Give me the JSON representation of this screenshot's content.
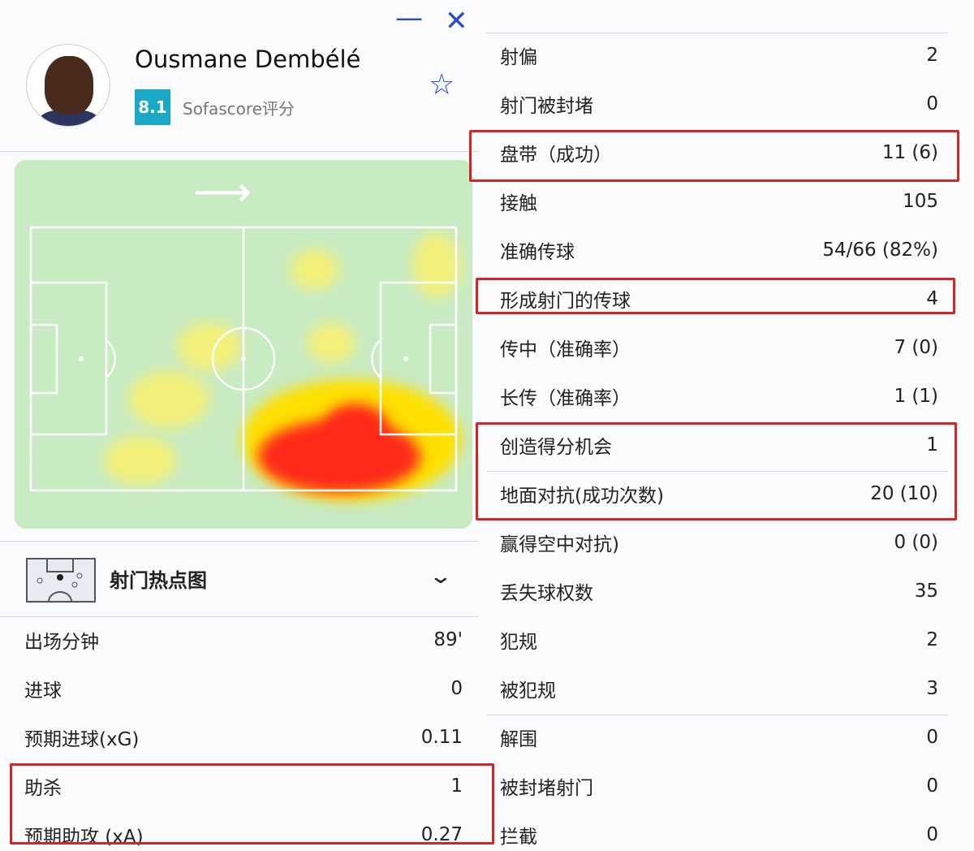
{
  "window": {
    "minimize_icon": "minus-icon",
    "close_icon": "close-icon"
  },
  "player": {
    "name": "Ousmane Dembélé",
    "rating": "8.1",
    "rating_label": "Sofascore评分",
    "favorite_icon": "star-icon"
  },
  "heatmap": {
    "direction_icon": "arrow-right-icon",
    "colors": {
      "pitch": "#c9ebc3",
      "low": "#f3f07a",
      "mid": "#ffe000",
      "high": "#ff2a1a"
    }
  },
  "shot_map": {
    "title": "射门热点图",
    "expand_icon": "chevron-down-icon"
  },
  "left_stats": [
    {
      "label": "出场分钟",
      "value": "89'"
    },
    {
      "label": "进球",
      "value": "0"
    },
    {
      "label": "预期进球(xG)",
      "value": "0.11"
    },
    {
      "label": "助杀",
      "value": "1"
    },
    {
      "label": "预期助攻 (xA)",
      "value": "0.27"
    }
  ],
  "right_stats": [
    {
      "label": "射偏",
      "value": "2"
    },
    {
      "label": "射门被封堵",
      "value": "0"
    },
    {
      "label": "盘带（成功）",
      "value": "11 (6)"
    },
    {
      "label": "接触",
      "value": "105"
    },
    {
      "label": "准确传球",
      "value": "54/66 (82%)"
    },
    {
      "label": "形成射门的传球",
      "value": "4"
    },
    {
      "label": "传中（准确率）",
      "value": "7 (0)"
    },
    {
      "label": "长传（准确率）",
      "value": "1 (1)"
    },
    {
      "label": "创造得分机会",
      "value": "1"
    },
    {
      "label": "地面对抗(成功次数)",
      "value": "20 (10)"
    },
    {
      "label": "赢得空中对抗)",
      "value": "0 (0)"
    },
    {
      "label": "丢失球权数",
      "value": "35"
    },
    {
      "label": "犯规",
      "value": "2"
    },
    {
      "label": "被犯规",
      "value": "3"
    },
    {
      "label": "解围",
      "value": "0"
    },
    {
      "label": "被封堵射门",
      "value": "0"
    },
    {
      "label": "拦截",
      "value": "0"
    }
  ],
  "highlight_color": "#d02626"
}
